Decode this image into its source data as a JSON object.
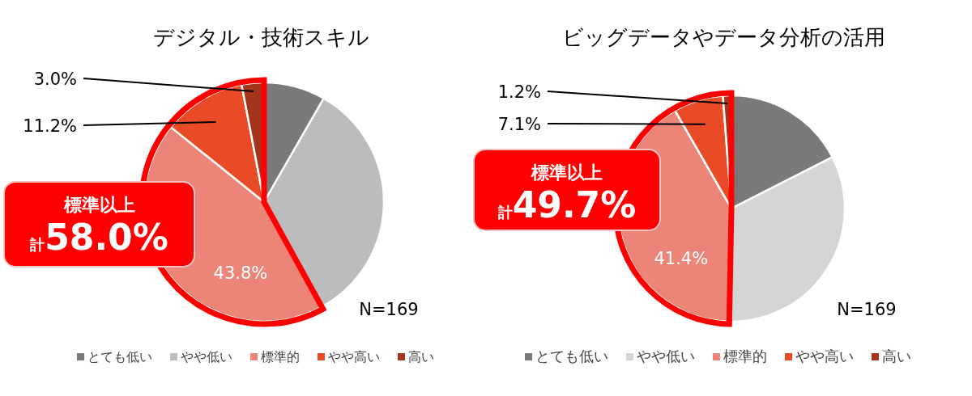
{
  "chart_data": [
    {
      "type": "pie",
      "title": "デジタル・技術スキル",
      "categories": [
        "とても低い",
        "やや低い",
        "標準的",
        "やや高い",
        "高い"
      ],
      "values": [
        8.3,
        33.7,
        43.8,
        11.2,
        3.0
      ],
      "colors": [
        "#7a7a7b",
        "#bcbcbe",
        "#ec8578",
        "#e84b26",
        "#a5341d"
      ],
      "value_labels": [
        null,
        null,
        "43.8%",
        "11.2%",
        "3.0%"
      ],
      "legend": "bottom",
      "annotations": [
        "標準以上",
        "計58.0%",
        "N=169"
      ]
    },
    {
      "type": "pie",
      "title": "ビッグデータやデータ分析の活用",
      "categories": [
        "とても低い",
        "やや低い",
        "標準的",
        "やや高い",
        "高い"
      ],
      "values": [
        17.5,
        32.8,
        41.4,
        7.1,
        1.2
      ],
      "colors": [
        "#7a7a7b",
        "#d4d5d5",
        "#ec8578",
        "#e84b26",
        "#a5341d"
      ],
      "value_labels": [
        null,
        null,
        "41.4%",
        "7.1%",
        "1.2%"
      ],
      "legend": "bottom",
      "annotations": [
        "標準以上",
        "計49.7%",
        "N=169"
      ]
    }
  ]
}
